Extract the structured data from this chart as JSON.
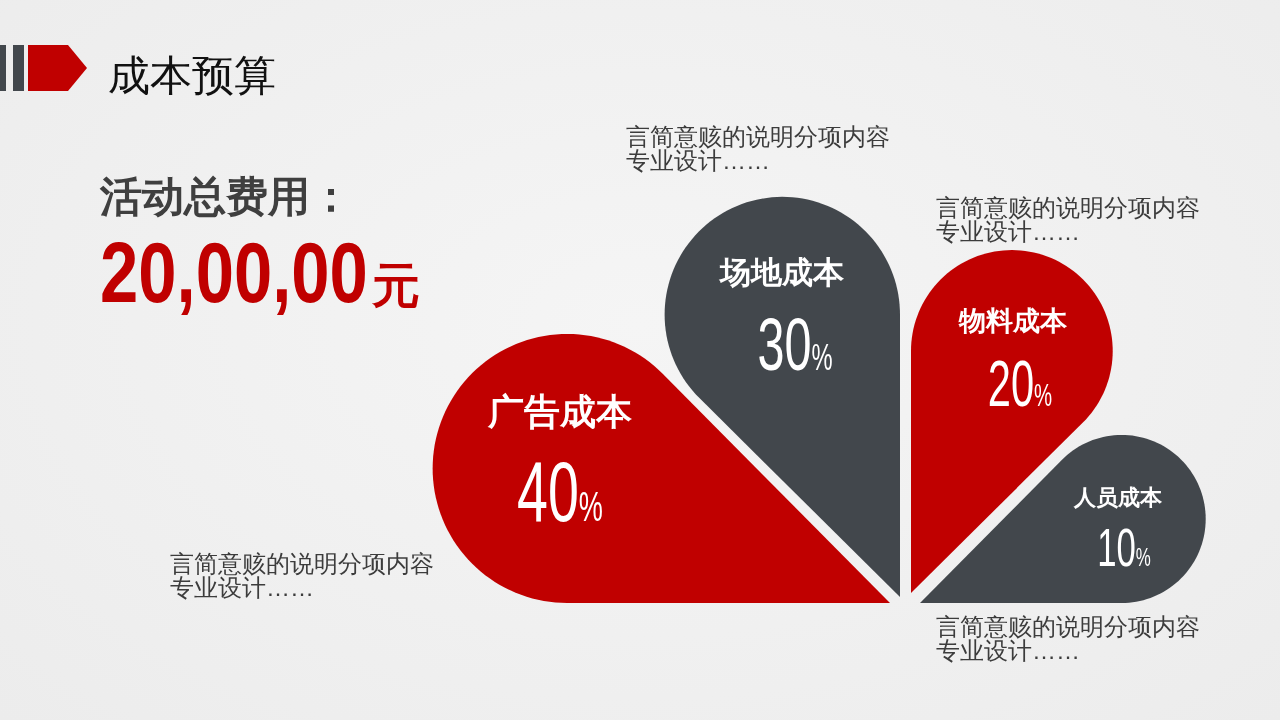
{
  "chart_data": {
    "type": "other",
    "title": "成本预算",
    "categories": [
      "广告成本",
      "场地成本",
      "物料成本",
      "人员成本"
    ],
    "values": [
      40,
      30,
      20,
      10
    ],
    "value_labels": [
      "40%",
      "30%",
      "20%",
      "10%"
    ],
    "colors": [
      "#c00000",
      "#42474c",
      "#c00000",
      "#42474c"
    ],
    "annotations": [
      "活动总费用：",
      "20,00,00元",
      "言简意赅的说明分项内容专业设计……",
      "言简意赅的说明分项内容专业设计……",
      "言简意赅的说明分项内容专业设计……",
      "言简意赅的说明分项内容专业设计……"
    ]
  }
}
